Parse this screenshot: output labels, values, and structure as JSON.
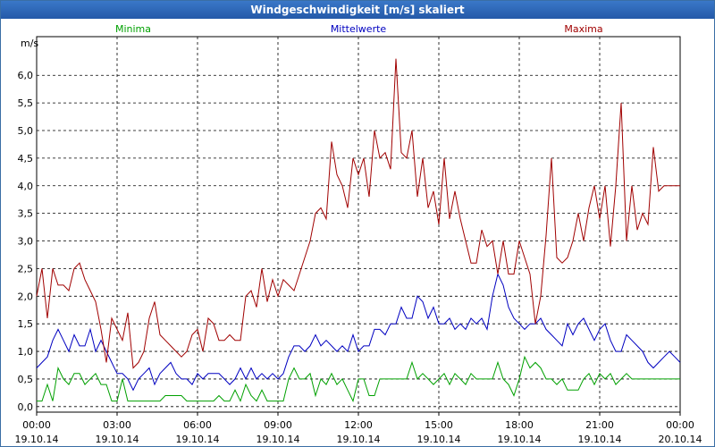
{
  "window": {
    "title": "Windgeschwindigkeit [m/s] skaliert"
  },
  "colors": {
    "minima": "#00a000",
    "mittelwerte": "#0000c0",
    "maxima": "#a00000",
    "title_bar": "#2f6cbf"
  },
  "chart_data": {
    "type": "line",
    "title": "Windgeschwindigkeit [m/s] skaliert",
    "ylabel": "m/s",
    "xlabel": "",
    "ylim": [
      -0.1,
      6.7
    ],
    "xlim": [
      0,
      24
    ],
    "grid": true,
    "legend_placement": "top",
    "y_ticks": [
      "0,0",
      "0,5",
      "1,0",
      "1,5",
      "2,0",
      "2,5",
      "3,0",
      "3,5",
      "4,0",
      "4,5",
      "5,0",
      "5,5",
      "6,0"
    ],
    "x_ticks": [
      {
        "time": "00:00",
        "date": "19.10.14"
      },
      {
        "time": "03:00",
        "date": "19.10.14"
      },
      {
        "time": "06:00",
        "date": "19.10.14"
      },
      {
        "time": "09:00",
        "date": "19.10.14"
      },
      {
        "time": "12:00",
        "date": "19.10.14"
      },
      {
        "time": "15:00",
        "date": "19.10.14"
      },
      {
        "time": "18:00",
        "date": "19.10.14"
      },
      {
        "time": "21:00",
        "date": "19.10.14"
      },
      {
        "time": "00:00",
        "date": "20.10.14"
      }
    ],
    "series": [
      {
        "name": "Minima",
        "color": "#00a000",
        "x": [
          0,
          0.2,
          0.4,
          0.6,
          0.8,
          1.0,
          1.2,
          1.4,
          1.6,
          1.8,
          2.0,
          2.2,
          2.4,
          2.6,
          2.8,
          3.0,
          3.2,
          3.4,
          3.6,
          3.8,
          4.0,
          4.2,
          4.4,
          4.6,
          4.8,
          5.0,
          5.2,
          5.4,
          5.6,
          5.8,
          6.0,
          6.2,
          6.4,
          6.6,
          6.8,
          7.0,
          7.2,
          7.4,
          7.6,
          7.8,
          8.0,
          8.2,
          8.4,
          8.6,
          8.8,
          9.0,
          9.2,
          9.4,
          9.6,
          9.8,
          10.0,
          10.2,
          10.4,
          10.6,
          10.8,
          11.0,
          11.2,
          11.4,
          11.6,
          11.8,
          12.0,
          12.2,
          12.4,
          12.6,
          12.8,
          13.0,
          13.2,
          13.4,
          13.6,
          13.8,
          14.0,
          14.2,
          14.4,
          14.6,
          14.8,
          15.0,
          15.2,
          15.4,
          15.6,
          15.8,
          16.0,
          16.2,
          16.4,
          16.6,
          16.8,
          17.0,
          17.2,
          17.4,
          17.6,
          17.8,
          18.0,
          18.2,
          18.4,
          18.6,
          18.8,
          19.0,
          19.2,
          19.4,
          19.6,
          19.8,
          20.0,
          20.2,
          20.4,
          20.6,
          20.8,
          21.0,
          21.2,
          21.4,
          21.6,
          21.8,
          22.0,
          22.2,
          22.4,
          22.6,
          22.8,
          23.0,
          23.2,
          23.4,
          23.6,
          23.8,
          24.0
        ],
        "values": [
          0.1,
          0.1,
          0.4,
          0.1,
          0.7,
          0.5,
          0.4,
          0.6,
          0.6,
          0.4,
          0.5,
          0.6,
          0.4,
          0.4,
          0.1,
          0.1,
          0.5,
          0.1,
          0.1,
          0.1,
          0.1,
          0.1,
          0.1,
          0.1,
          0.2,
          0.2,
          0.2,
          0.2,
          0.1,
          0.1,
          0.1,
          0.1,
          0.1,
          0.1,
          0.2,
          0.1,
          0.1,
          0.3,
          0.1,
          0.4,
          0.2,
          0.1,
          0.3,
          0.1,
          0.1,
          0.1,
          0.1,
          0.5,
          0.7,
          0.5,
          0.5,
          0.6,
          0.2,
          0.5,
          0.4,
          0.6,
          0.4,
          0.5,
          0.3,
          0.1,
          0.5,
          0.5,
          0.2,
          0.2,
          0.5,
          0.5,
          0.5,
          0.5,
          0.5,
          0.5,
          0.8,
          0.5,
          0.6,
          0.5,
          0.4,
          0.5,
          0.6,
          0.4,
          0.6,
          0.5,
          0.4,
          0.6,
          0.5,
          0.5,
          0.5,
          0.5,
          0.8,
          0.5,
          0.4,
          0.2,
          0.5,
          0.9,
          0.7,
          0.8,
          0.7,
          0.5,
          0.5,
          0.4,
          0.5,
          0.3,
          0.3,
          0.3,
          0.5,
          0.6,
          0.4,
          0.6,
          0.5,
          0.6,
          0.4,
          0.5,
          0.6,
          0.5,
          0.5,
          0.5,
          0.5,
          0.5,
          0.5,
          0.5,
          0.5,
          0.5,
          0.5
        ]
      },
      {
        "name": "Mittelwerte",
        "color": "#0000c0",
        "x": [
          0,
          0.2,
          0.4,
          0.6,
          0.8,
          1.0,
          1.2,
          1.4,
          1.6,
          1.8,
          2.0,
          2.2,
          2.4,
          2.6,
          2.8,
          3.0,
          3.2,
          3.4,
          3.6,
          3.8,
          4.0,
          4.2,
          4.4,
          4.6,
          4.8,
          5.0,
          5.2,
          5.4,
          5.6,
          5.8,
          6.0,
          6.2,
          6.4,
          6.6,
          6.8,
          7.0,
          7.2,
          7.4,
          7.6,
          7.8,
          8.0,
          8.2,
          8.4,
          8.6,
          8.8,
          9.0,
          9.2,
          9.4,
          9.6,
          9.8,
          10.0,
          10.2,
          10.4,
          10.6,
          10.8,
          11.0,
          11.2,
          11.4,
          11.6,
          11.8,
          12.0,
          12.2,
          12.4,
          12.6,
          12.8,
          13.0,
          13.2,
          13.4,
          13.6,
          13.8,
          14.0,
          14.2,
          14.4,
          14.6,
          14.8,
          15.0,
          15.2,
          15.4,
          15.6,
          15.8,
          16.0,
          16.2,
          16.4,
          16.6,
          16.8,
          17.0,
          17.2,
          17.4,
          17.6,
          17.8,
          18.0,
          18.2,
          18.4,
          18.6,
          18.8,
          19.0,
          19.2,
          19.4,
          19.6,
          19.8,
          20.0,
          20.2,
          20.4,
          20.6,
          20.8,
          21.0,
          21.2,
          21.4,
          21.6,
          21.8,
          22.0,
          22.2,
          22.4,
          22.6,
          22.8,
          23.0,
          23.2,
          23.4,
          23.6,
          23.8,
          24.0
        ],
        "values": [
          0.7,
          0.8,
          0.9,
          1.2,
          1.4,
          1.2,
          1.0,
          1.3,
          1.1,
          1.1,
          1.4,
          1.0,
          1.2,
          1.0,
          0.8,
          0.6,
          0.6,
          0.5,
          0.3,
          0.5,
          0.6,
          0.7,
          0.4,
          0.6,
          0.7,
          0.8,
          0.6,
          0.5,
          0.5,
          0.4,
          0.6,
          0.5,
          0.6,
          0.6,
          0.6,
          0.5,
          0.4,
          0.5,
          0.7,
          0.5,
          0.7,
          0.5,
          0.6,
          0.5,
          0.6,
          0.5,
          0.6,
          0.9,
          1.1,
          1.1,
          1.0,
          1.1,
          1.3,
          1.1,
          1.2,
          1.1,
          1.0,
          1.1,
          1.0,
          1.3,
          1.0,
          1.1,
          1.1,
          1.4,
          1.4,
          1.3,
          1.5,
          1.5,
          1.8,
          1.6,
          1.6,
          2.0,
          1.9,
          1.6,
          1.8,
          1.5,
          1.5,
          1.6,
          1.4,
          1.5,
          1.4,
          1.6,
          1.5,
          1.6,
          1.4,
          2.0,
          2.4,
          2.2,
          1.8,
          1.6,
          1.5,
          1.4,
          1.5,
          1.5,
          1.6,
          1.4,
          1.3,
          1.2,
          1.1,
          1.5,
          1.3,
          1.5,
          1.6,
          1.4,
          1.2,
          1.4,
          1.5,
          1.2,
          1.0,
          1.0,
          1.3,
          1.2,
          1.1,
          1.0,
          0.8,
          0.7,
          0.8,
          0.9,
          1.0,
          0.9,
          0.8
        ]
      },
      {
        "name": "Maxima",
        "color": "#a00000",
        "x": [
          0,
          0.2,
          0.4,
          0.6,
          0.8,
          1.0,
          1.2,
          1.4,
          1.6,
          1.8,
          2.0,
          2.2,
          2.4,
          2.6,
          2.8,
          3.0,
          3.2,
          3.4,
          3.6,
          3.8,
          4.0,
          4.2,
          4.4,
          4.6,
          4.8,
          5.0,
          5.2,
          5.4,
          5.6,
          5.8,
          6.0,
          6.2,
          6.4,
          6.6,
          6.8,
          7.0,
          7.2,
          7.4,
          7.6,
          7.8,
          8.0,
          8.2,
          8.4,
          8.6,
          8.8,
          9.0,
          9.2,
          9.4,
          9.6,
          9.8,
          10.0,
          10.2,
          10.4,
          10.6,
          10.8,
          11.0,
          11.2,
          11.4,
          11.6,
          11.8,
          12.0,
          12.2,
          12.4,
          12.6,
          12.8,
          13.0,
          13.2,
          13.4,
          13.6,
          13.8,
          14.0,
          14.2,
          14.4,
          14.6,
          14.8,
          15.0,
          15.2,
          15.4,
          15.6,
          15.8,
          16.0,
          16.2,
          16.4,
          16.6,
          16.8,
          17.0,
          17.2,
          17.4,
          17.6,
          17.8,
          18.0,
          18.2,
          18.4,
          18.6,
          18.8,
          19.0,
          19.2,
          19.4,
          19.6,
          19.8,
          20.0,
          20.2,
          20.4,
          20.6,
          20.8,
          21.0,
          21.2,
          21.4,
          21.6,
          21.8,
          22.0,
          22.2,
          22.4,
          22.6,
          22.8,
          23.0,
          23.2,
          23.4,
          23.6,
          23.8,
          24.0
        ],
        "values": [
          2.0,
          2.5,
          1.6,
          2.5,
          2.2,
          2.2,
          2.1,
          2.5,
          2.6,
          2.3,
          2.1,
          1.9,
          1.4,
          0.8,
          1.6,
          1.4,
          1.2,
          1.7,
          0.7,
          0.8,
          1.0,
          1.6,
          1.9,
          1.3,
          1.2,
          1.1,
          1.0,
          0.9,
          1.0,
          1.3,
          1.4,
          1.0,
          1.6,
          1.5,
          1.2,
          1.2,
          1.3,
          1.2,
          1.2,
          2.0,
          2.1,
          1.8,
          2.5,
          1.9,
          2.3,
          2.0,
          2.3,
          2.2,
          2.1,
          2.4,
          2.7,
          3.0,
          3.5,
          3.6,
          3.4,
          4.8,
          4.2,
          4.0,
          3.6,
          4.5,
          4.2,
          4.5,
          3.8,
          5.0,
          4.5,
          4.6,
          4.3,
          6.3,
          4.6,
          4.5,
          5.0,
          3.8,
          4.5,
          3.6,
          3.9,
          3.3,
          4.5,
          3.4,
          3.9,
          3.4,
          3.0,
          2.6,
          2.6,
          3.2,
          2.9,
          3.0,
          2.4,
          3.0,
          2.4,
          2.4,
          3.0,
          2.7,
          2.4,
          1.5,
          2.0,
          3.1,
          4.5,
          2.7,
          2.6,
          2.7,
          3.0,
          3.5,
          3.0,
          3.6,
          4.0,
          3.4,
          4.0,
          2.9,
          4.0,
          5.5,
          3.0,
          4.0,
          3.2,
          3.5,
          3.3,
          4.7,
          3.9,
          4.0,
          4.0,
          4.0,
          4.0
        ]
      }
    ]
  }
}
